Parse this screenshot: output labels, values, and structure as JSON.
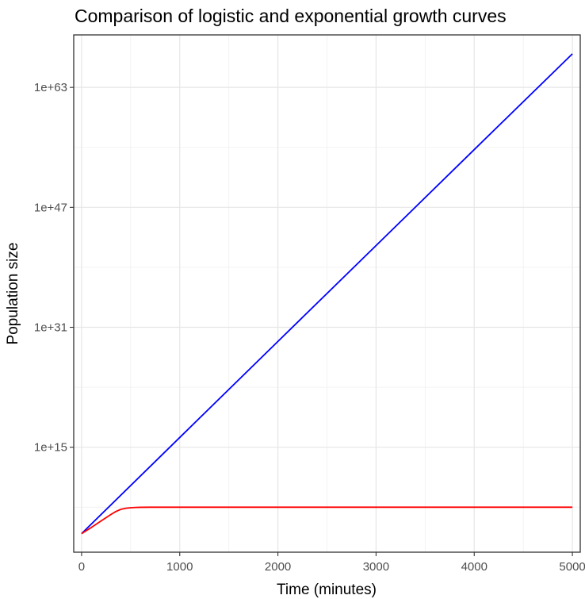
{
  "chart_data": {
    "type": "line",
    "title": "Comparison of logistic and exponential growth curves",
    "xlabel": "Time (minutes)",
    "ylabel": "Population size",
    "x_ticks": [
      0,
      1000,
      2000,
      3000,
      4000,
      5000
    ],
    "x_tick_labels": [
      "0",
      "1000",
      "2000",
      "3000",
      "4000",
      "5000"
    ],
    "xlim": [
      -80,
      5080
    ],
    "y_scale": "log10",
    "y_ticks": [
      1000000000000000.0,
      1e+31,
      1e+47,
      1e+63
    ],
    "y_tick_labels": [
      "1e+15",
      "1e+31",
      "1e+47",
      "1e+63"
    ],
    "ylim": [
      10.0,
      1e+70
    ],
    "grid": true,
    "legend": "none",
    "series": [
      {
        "color": "#0000ff",
        "x": [
          0,
          1000,
          2000,
          3000,
          4000,
          5000
        ],
        "y": [
          3000.0,
          2e+16,
          1.3e+29,
          8e+41,
          5e+54,
          3e+67
        ]
      },
      {
        "color": "#ff0000",
        "x": [
          0,
          100,
          200,
          300,
          350,
          400,
          450,
          500,
          550,
          600,
          700,
          1000,
          2000,
          3000,
          4000,
          5000
        ],
        "y": [
          3000.0,
          20000.0,
          150000.0,
          1100000.0,
          2700000.0,
          5200000.0,
          7300000.0,
          8500000.0,
          9300000.0,
          9700000.0,
          10000000.0,
          10000000.0,
          10000000.0,
          10000000.0,
          10000000.0,
          10000000.0
        ]
      }
    ]
  }
}
